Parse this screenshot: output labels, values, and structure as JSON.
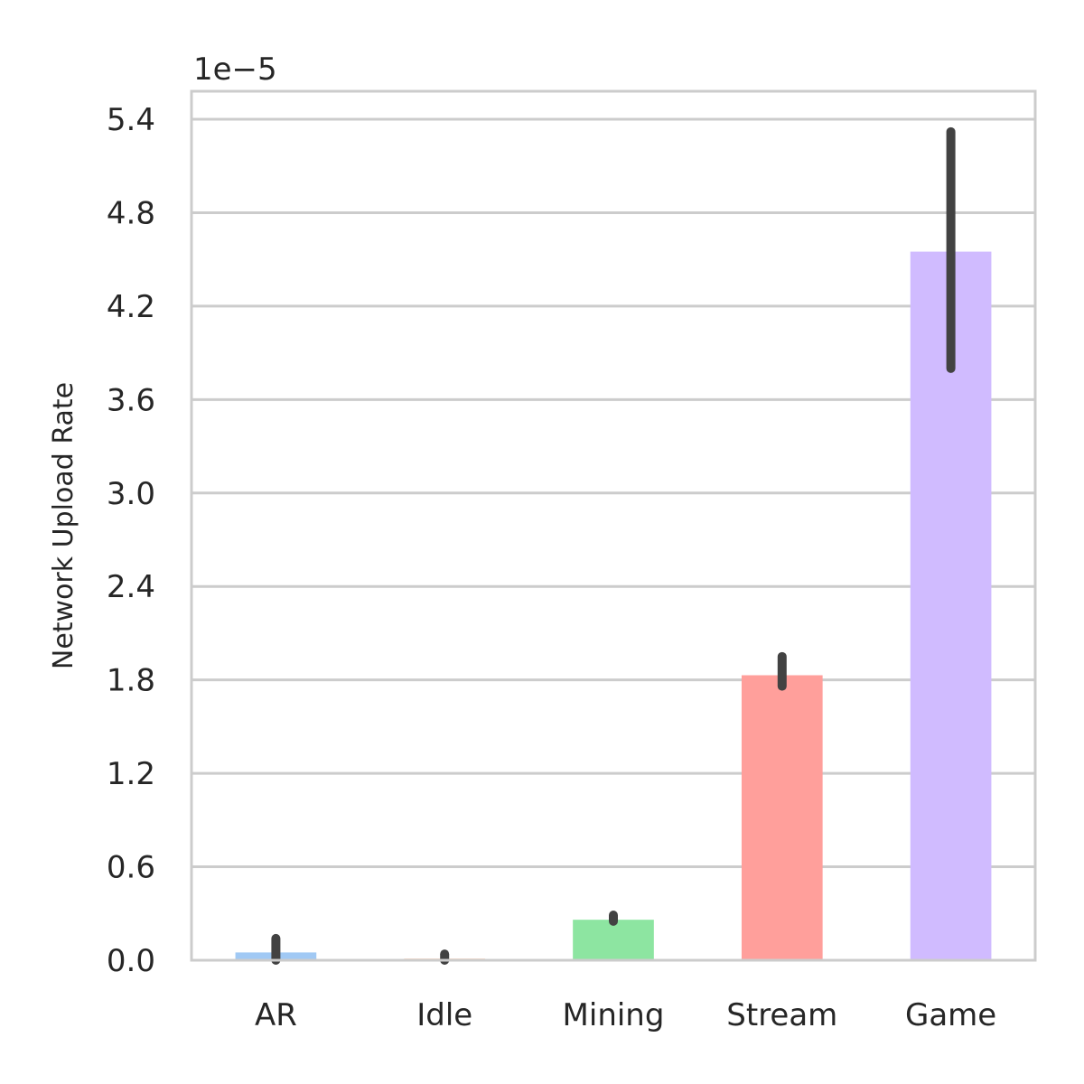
{
  "chart_data": {
    "type": "bar",
    "title": "",
    "xlabel": "",
    "ylabel": "Network Upload Rate",
    "y_offset_label": "1e−5",
    "categories": [
      "AR",
      "Idle",
      "Mining",
      "Stream",
      "Game"
    ],
    "values": [
      0.05,
      0.01,
      0.26,
      1.83,
      4.55
    ],
    "error_low": [
      0.0,
      0.0,
      0.25,
      1.76,
      3.8
    ],
    "error_high": [
      0.14,
      0.04,
      0.29,
      1.95,
      5.32
    ],
    "colors": [
      "#a1c9f4",
      "#ffb482",
      "#8de5a1",
      "#ff9f9b",
      "#d0bbff"
    ],
    "error_color": "#424242",
    "ylim": [
      0,
      5.58
    ],
    "yticks": [
      "0.0",
      "0.6",
      "1.2",
      "1.8",
      "2.4",
      "3.0",
      "3.6",
      "4.2",
      "4.8",
      "5.4"
    ],
    "grid": true,
    "grid_axis": "y"
  }
}
